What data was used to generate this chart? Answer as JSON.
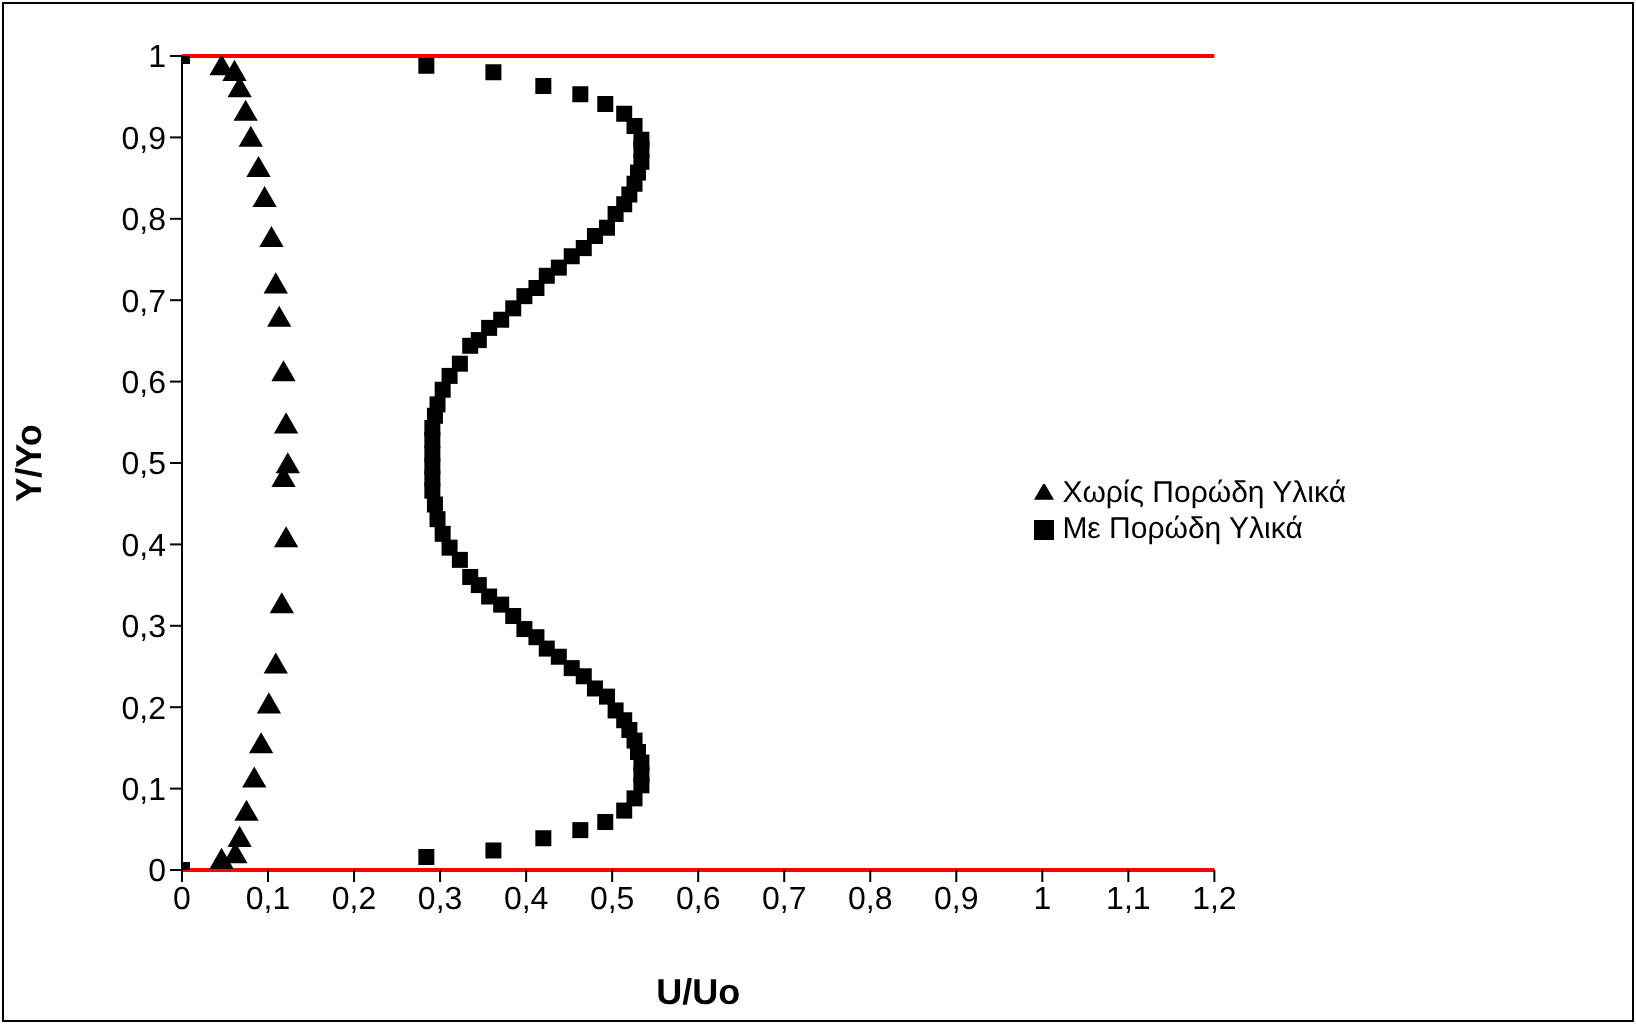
{
  "chart_data": {
    "type": "scatter",
    "xlabel": "U/Uo",
    "ylabel": "Y/Yo",
    "xlim": [
      0,
      1.2
    ],
    "ylim": [
      0,
      1
    ],
    "xticks": [
      0,
      {
        "value": 0.1,
        "label": "0,1"
      },
      {
        "value": 0.2,
        "label": "0,2"
      },
      {
        "value": 0.3,
        "label": "0,3"
      },
      {
        "value": 0.4,
        "label": "0,4"
      },
      {
        "value": 0.5,
        "label": "0,5"
      },
      {
        "value": 0.6,
        "label": "0,6"
      },
      {
        "value": 0.7,
        "label": "0,7"
      },
      {
        "value": 0.8,
        "label": "0,8"
      },
      {
        "value": 0.9,
        "label": "0,9"
      },
      1,
      {
        "value": 1.1,
        "label": "1,1"
      },
      {
        "value": 1.2,
        "label": "1,2"
      }
    ],
    "yticks": [
      0,
      {
        "value": 0.1,
        "label": "0,1"
      },
      {
        "value": 0.2,
        "label": "0,2"
      },
      {
        "value": 0.3,
        "label": "0,3"
      },
      {
        "value": 0.4,
        "label": "0,4"
      },
      {
        "value": 0.5,
        "label": "0,5"
      },
      {
        "value": 0.6,
        "label": "0,6"
      },
      {
        "value": 0.7,
        "label": "0,7"
      },
      {
        "value": 0.8,
        "label": "0,8"
      },
      {
        "value": 0.9,
        "label": "0,9"
      },
      1
    ],
    "grid": false,
    "legend": "right",
    "ref_lines": [
      {
        "axis": "y",
        "value": 1,
        "color": "#ff0000"
      }
    ],
    "series": [
      {
        "name": "Χωρίς Πορώδη Υλικά",
        "color": "#000000",
        "marker": "triangle",
        "x": [
          0.046,
          0.061,
          0.067,
          0.074,
          0.08,
          0.089,
          0.096,
          0.104,
          0.109,
          0.113,
          0.118,
          0.121,
          0.123,
          0.118,
          0.121,
          0.116,
          0.109,
          0.101,
          0.092,
          0.084,
          0.075,
          0.067,
          0.062,
          0.046
        ],
        "values": [
          0.985,
          0.978,
          0.958,
          0.929,
          0.897,
          0.86,
          0.823,
          0.774,
          0.717,
          0.676,
          0.609,
          0.545,
          0.496,
          0.479,
          0.405,
          0.324,
          0.25,
          0.201,
          0.152,
          0.11,
          0.069,
          0.037,
          0.017,
          0.01
        ]
      },
      {
        "name": "Με Πορώδη Υλικά",
        "color": "#000000",
        "marker": "square",
        "x": [
          0,
          0.284,
          0.362,
          0.42,
          0.463,
          0.492,
          0.514,
          0.526,
          0.534,
          0.534,
          0.534,
          0.53,
          0.526,
          0.52,
          0.514,
          0.504,
          0.494,
          0.48,
          0.467,
          0.453,
          0.438,
          0.424,
          0.412,
          0.398,
          0.385,
          0.371,
          0.357,
          0.345,
          0.335,
          0.323,
          0.311,
          0.303,
          0.297,
          0.294,
          0.291,
          0.291,
          0.291,
          0.291,
          0.291,
          0.291,
          0.294,
          0.297,
          0.303,
          0.311,
          0.323,
          0.335,
          0.345,
          0.357,
          0.371,
          0.385,
          0.398,
          0.412,
          0.424,
          0.438,
          0.453,
          0.467,
          0.48,
          0.494,
          0.504,
          0.514,
          0.52,
          0.526,
          0.53,
          0.534,
          0.534,
          0.534,
          0.526,
          0.514,
          0.492,
          0.463,
          0.42,
          0.362,
          0.284,
          0
        ],
        "values": [
          1,
          0.988,
          0.98,
          0.963,
          0.953,
          0.941,
          0.929,
          0.914,
          0.897,
          0.885,
          0.87,
          0.857,
          0.843,
          0.83,
          0.818,
          0.806,
          0.789,
          0.779,
          0.764,
          0.754,
          0.74,
          0.73,
          0.715,
          0.705,
          0.69,
          0.676,
          0.666,
          0.651,
          0.644,
          0.622,
          0.607,
          0.59,
          0.572,
          0.558,
          0.543,
          0.528,
          0.511,
          0.496,
          0.481,
          0.466,
          0.449,
          0.431,
          0.413,
          0.396,
          0.381,
          0.36,
          0.35,
          0.336,
          0.326,
          0.312,
          0.296,
          0.286,
          0.272,
          0.262,
          0.248,
          0.238,
          0.223,
          0.213,
          0.196,
          0.184,
          0.172,
          0.159,
          0.145,
          0.132,
          0.117,
          0.104,
          0.088,
          0.073,
          0.059,
          0.049,
          0.039,
          0.024,
          0.016,
          0
        ]
      }
    ]
  }
}
